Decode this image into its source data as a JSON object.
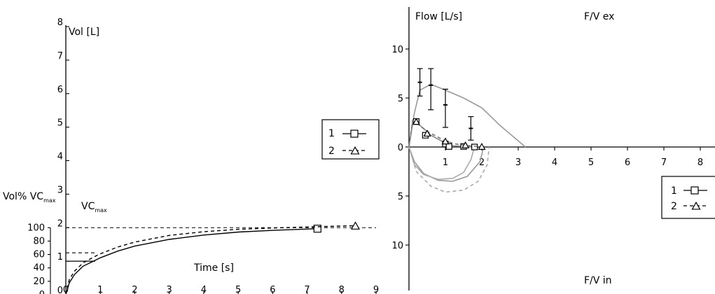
{
  "chart_data": [
    {
      "type": "line",
      "xlabel": "Time [s]",
      "ylabel": "Vol [L]",
      "xlim": [
        0,
        9
      ],
      "ylim": [
        0,
        8
      ],
      "xticks": [
        "0",
        "1",
        "2",
        "3",
        "4",
        "5",
        "6",
        "7",
        "8",
        "9"
      ],
      "yticks": [
        "0",
        "1",
        "2",
        "3",
        "4",
        "5",
        "6",
        "7",
        "8"
      ],
      "secondary_axis": {
        "label_main": "Vol% VC",
        "label_sub": "max",
        "ticks": [
          "0",
          "20",
          "40",
          "60",
          "80",
          "100"
        ],
        "range": [
          0,
          100
        ]
      },
      "reference_line": {
        "label_main": "VC",
        "label_sub": "max",
        "y": 2.0
      },
      "series": [
        {
          "name": "1",
          "style": "solid",
          "marker": "square",
          "x": [
            0,
            0.1,
            0.25,
            0.5,
            0.8,
            1.0,
            1.5,
            2.0,
            3.0,
            4.0,
            5.0,
            6.0,
            7.3
          ],
          "y": [
            0,
            0.35,
            0.6,
            0.85,
            1.0,
            1.1,
            1.3,
            1.45,
            1.65,
            1.78,
            1.87,
            1.92,
            1.97
          ],
          "marker_at": [
            7.3,
            1.97
          ]
        },
        {
          "name": "2",
          "style": "dashed",
          "marker": "triangle",
          "x": [
            0,
            0.1,
            0.25,
            0.5,
            0.8,
            1.0,
            1.5,
            2.0,
            3.0,
            4.0,
            5.0,
            6.0,
            7.0,
            8.4
          ],
          "y": [
            0,
            0.45,
            0.7,
            0.95,
            1.12,
            1.22,
            1.42,
            1.57,
            1.77,
            1.88,
            1.95,
            1.99,
            2.02,
            2.06
          ],
          "marker_at": [
            8.4,
            2.06
          ]
        }
      ],
      "annotations": [
        {
          "series": "1",
          "x": 0.3,
          "y": 1.0
        },
        {
          "series": "2",
          "x": 0.85,
          "y": 1.25
        }
      ],
      "legend": {
        "placement": "right",
        "entries": [
          "1",
          "2"
        ]
      }
    },
    {
      "type": "line",
      "title_top": "F/V ex",
      "title_bottom": "F/V in",
      "ylabel": "Flow [L/s]",
      "xlim": [
        0,
        8.5
      ],
      "ylim": [
        -14,
        14
      ],
      "xticks": [
        "1",
        "2",
        "3",
        "4",
        "5",
        "6",
        "7",
        "8"
      ],
      "yticks_up": [
        "0",
        "5",
        "10"
      ],
      "yticks_down": [
        "5",
        "10"
      ],
      "predicted": {
        "x": [
          0.3,
          0.6,
          1.0,
          1.7
        ],
        "mean": [
          6.6,
          6.3,
          4.3,
          1.9
        ],
        "low": [
          5.2,
          3.8,
          2.0,
          0.7
        ],
        "high": [
          8.0,
          8.0,
          5.9,
          3.1
        ]
      },
      "reference_curve": {
        "style": "solid-gray",
        "ex": {
          "x": [
            0,
            0.15,
            0.3,
            0.6,
            1.0,
            1.5,
            2.0,
            2.5,
            3.2
          ],
          "y": [
            0,
            3.5,
            5.8,
            6.4,
            5.8,
            5.0,
            4.0,
            2.2,
            0
          ]
        },
        "in": {
          "x": [
            0,
            0.15,
            0.4,
            0.8,
            1.2,
            1.6,
            1.95,
            2.05
          ],
          "y": [
            0,
            -1.5,
            -2.7,
            -3.4,
            -3.5,
            -3.0,
            -1.5,
            0
          ]
        }
      },
      "series": [
        {
          "name": "1",
          "style": "solid",
          "marker": "square",
          "ex": {
            "x": [
              0,
              0.1,
              0.2,
              0.4,
              0.6,
              0.8,
              1.0,
              1.1,
              1.3,
              1.5,
              1.7,
              1.8
            ],
            "y": [
              0,
              2.6,
              2.5,
              1.9,
              1.2,
              0.8,
              0.4,
              0.15,
              0.1,
              0.05,
              0.02,
              0
            ]
          },
          "in": {
            "x": [
              0,
              0.15,
              0.4,
              0.8,
              1.2,
              1.5,
              1.7,
              1.8
            ],
            "y": [
              0,
              -1.8,
              -2.8,
              -3.3,
              -3.2,
              -2.6,
              -1.3,
              0
            ]
          },
          "markers": {
            "x": [
              0.2,
              0.45,
              1.0,
              1.1,
              1.5,
              1.8
            ],
            "y": [
              2.6,
              1.2,
              0.3,
              0.05,
              0.05,
              0
            ]
          }
        },
        {
          "name": "2",
          "style": "dashed",
          "marker": "triangle",
          "ex": {
            "x": [
              0,
              0.1,
              0.25,
              0.5,
              0.8,
              1.0,
              1.3,
              1.6,
              1.9,
              2.1
            ],
            "y": [
              0,
              2.7,
              2.3,
              1.6,
              1.0,
              0.6,
              0.3,
              0.15,
              0.05,
              0
            ]
          },
          "in": {
            "x": [
              0,
              0.2,
              0.6,
              1.0,
              1.5,
              1.9,
              2.15,
              2.2
            ],
            "y": [
              0,
              -2.5,
              -4.0,
              -4.6,
              -4.4,
              -3.5,
              -1.8,
              0
            ]
          },
          "markers": {
            "x": [
              0.2,
              0.5,
              1.0,
              1.55,
              2.0
            ],
            "y": [
              2.6,
              1.4,
              0.6,
              0.2,
              0.05
            ]
          }
        }
      ],
      "legend": {
        "placement": "bottom-right",
        "entries": [
          "1",
          "2"
        ]
      }
    }
  ]
}
